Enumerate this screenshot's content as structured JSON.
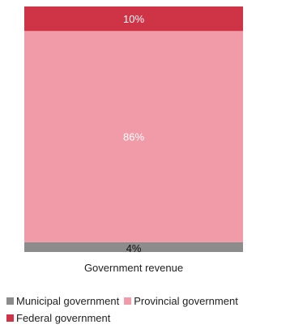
{
  "chart_data": {
    "type": "bar",
    "stacked": true,
    "normalized": true,
    "categories": [
      "Government revenue"
    ],
    "series": [
      {
        "name": "Municipal government",
        "values": [
          4
        ],
        "color": "#8c8c8c",
        "label": "4%",
        "label_color": "#111111"
      },
      {
        "name": "Provincial government",
        "values": [
          86
        ],
        "color": "#f29ba8",
        "label": "86%",
        "label_color": "#ffffff"
      },
      {
        "name": "Federal government",
        "values": [
          10
        ],
        "color": "#cf3346",
        "label": "10%",
        "label_color": "#ffffff"
      }
    ],
    "ylim": [
      0,
      100
    ],
    "grid": false,
    "legend_position": "bottom"
  }
}
